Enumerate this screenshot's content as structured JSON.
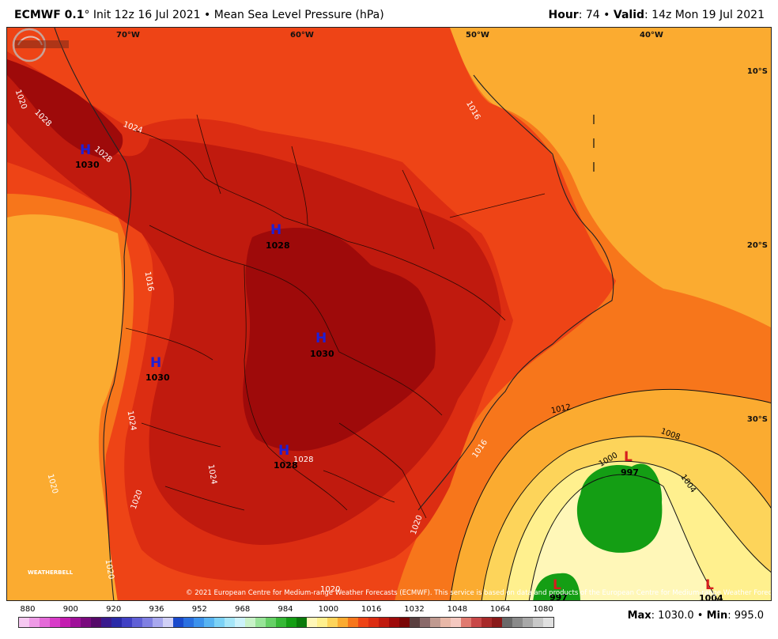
{
  "header": {
    "model": "ECMWF 0.1",
    "degree": "°",
    "init": " Init 12z 16 Jul 2021",
    "bullet": " • ",
    "field": "Mean Sea Level Pressure (hPa)",
    "hour_label": "Hour",
    "hour_value": ": 74",
    "valid_label": "Valid",
    "valid_value": ": 14z Mon 19 Jul 2021"
  },
  "map": {
    "lon_labels": [
      "70°W",
      "60°W",
      "50°W",
      "40°W"
    ],
    "lat_labels": [
      "10°S",
      "20°S",
      "30°S"
    ],
    "centers": [
      {
        "type": "H",
        "value": "1030"
      },
      {
        "type": "H",
        "value": "1028"
      },
      {
        "type": "H",
        "value": "1030"
      },
      {
        "type": "H",
        "value": "1030"
      },
      {
        "type": "H",
        "value": "1028"
      },
      {
        "type": "L",
        "value": "997"
      },
      {
        "type": "L",
        "value": "997"
      },
      {
        "type": "L",
        "value": "1004"
      }
    ],
    "contour_labels": [
      "1020",
      "1028",
      "1024",
      "1028",
      "1016",
      "1016",
      "1024",
      "1020",
      "1020",
      "1028",
      "1024",
      "1016",
      "1020",
      "1012",
      "1008",
      "1000",
      "1004",
      "1020",
      "1020",
      "1020"
    ],
    "copyright": "© 2021 European Centre for Medium-range Weather Forecasts (ECMWF). This service is based on data and products of the European Centre for Medium-range Weather Forecasts (ECMWF).",
    "logo_text": "WEATHERBELL",
    "colors": {
      "p1032": "#9e0a0a",
      "p1028": "#c01a0e",
      "p1024": "#dc2d12",
      "p1020": "#ee4416",
      "p1016": "#f7761b",
      "p1012": "#fbab30",
      "p1008": "#fdd45a",
      "p1004": "#fff08e",
      "p1000": "#fff7b8",
      "low": "#149e14"
    }
  },
  "legend": {
    "ticks": [
      "880",
      "900",
      "920",
      "936",
      "952",
      "968",
      "984",
      "1000",
      "1016",
      "1032",
      "1048",
      "1064",
      "1080"
    ],
    "colors": [
      "#f6c8f1",
      "#ee9ae6",
      "#e46ad8",
      "#d83cc8",
      "#c41cb0",
      "#a0109a",
      "#7a0a7e",
      "#560a6a",
      "#3a1a8e",
      "#2a2aa8",
      "#4040c4",
      "#6060d6",
      "#8080e2",
      "#a8a8ee",
      "#d0d0f6",
      "#1a4acc",
      "#2a70e0",
      "#3c92ec",
      "#58b4f2",
      "#7cd2f6",
      "#a6e6f8",
      "#ccf2fa",
      "#c8f2c8",
      "#98e498",
      "#66d066",
      "#36b836",
      "#149e14",
      "#0a7a0a",
      "#fff7b8",
      "#fff08e",
      "#fdd45a",
      "#fbab30",
      "#f7761b",
      "#ee4416",
      "#dc2d12",
      "#c01a0e",
      "#9e0a0a",
      "#7a0606",
      "#5a4040",
      "#8a6a6a",
      "#c09a90",
      "#e8b8a8",
      "#f4c8c0",
      "#e07a70",
      "#c84848",
      "#a82a2a",
      "#8a1a1a",
      "#6a6a6a",
      "#8a8a8a",
      "#a8a8a8",
      "#c8c8c8",
      "#e0e0e0"
    ]
  },
  "stats": {
    "max_label": "Max",
    "max_value": ": 1030.0",
    "sep": " • ",
    "min_label": "Min",
    "min_value": ": 995.0"
  }
}
